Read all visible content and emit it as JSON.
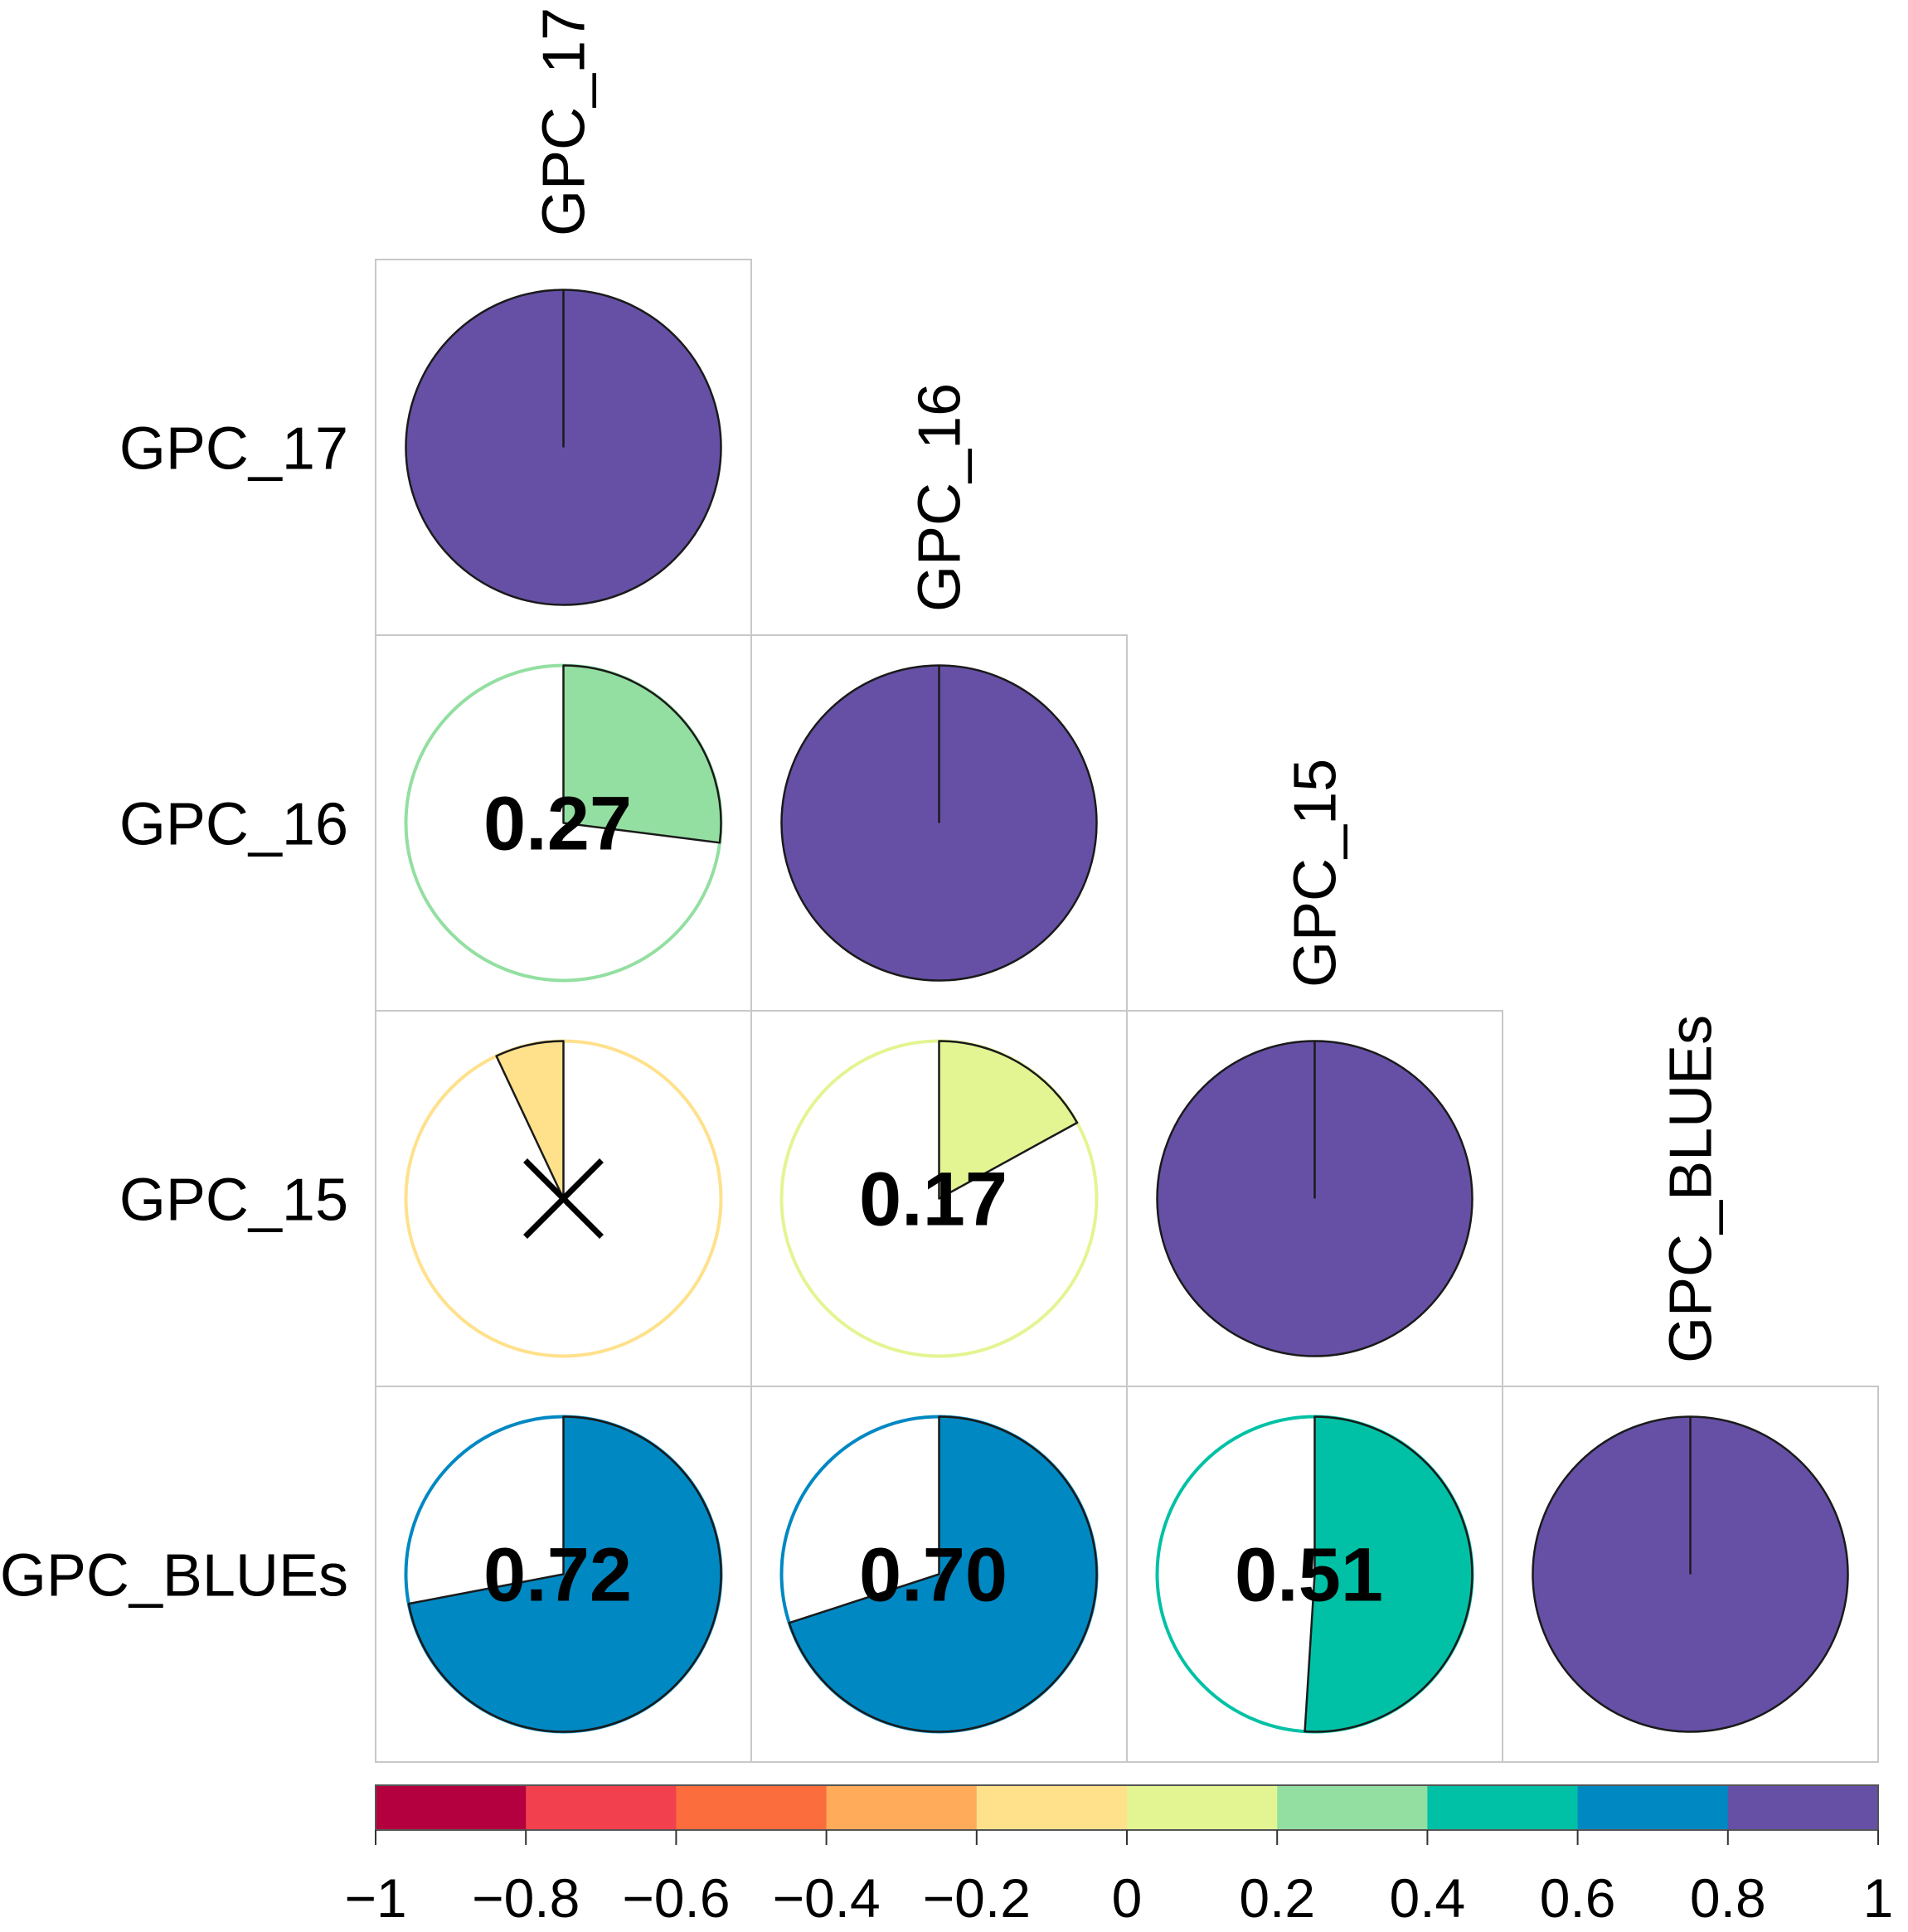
{
  "chart_data": {
    "type": "correlation_matrix_pie",
    "layout": "lower-triangle",
    "variables": [
      "GPC_17",
      "GPC_16",
      "GPC_15",
      "GPC_BLUEs"
    ],
    "matrix": [
      [
        1.0,
        null,
        null,
        null
      ],
      [
        0.27,
        1.0,
        null,
        null
      ],
      [
        -0.07,
        0.17,
        1.0,
        null
      ],
      [
        0.72,
        0.7,
        0.51,
        1.0
      ]
    ],
    "cells": [
      {
        "row": 0,
        "col": 0,
        "value": 1.0,
        "color": "#6650a6",
        "label": null,
        "insignificant": false
      },
      {
        "row": 1,
        "col": 0,
        "value": 0.27,
        "color": "#93dfa1",
        "label": "0.27",
        "insignificant": false
      },
      {
        "row": 1,
        "col": 1,
        "value": 1.0,
        "color": "#6650a6",
        "label": null,
        "insignificant": false
      },
      {
        "row": 2,
        "col": 0,
        "value": -0.07,
        "color": "#ffe18c",
        "label": null,
        "insignificant": true
      },
      {
        "row": 2,
        "col": 1,
        "value": 0.17,
        "color": "#e3f592",
        "label": "0.17",
        "insignificant": false
      },
      {
        "row": 2,
        "col": 2,
        "value": 1.0,
        "color": "#6650a6",
        "label": null,
        "insignificant": false
      },
      {
        "row": 3,
        "col": 0,
        "value": 0.72,
        "color": "#0088c2",
        "label": "0.72",
        "insignificant": false
      },
      {
        "row": 3,
        "col": 1,
        "value": 0.7,
        "color": "#0088c2",
        "label": "0.70",
        "insignificant": false
      },
      {
        "row": 3,
        "col": 2,
        "value": 0.51,
        "color": "#00c1a5",
        "label": "0.51",
        "insignificant": false
      },
      {
        "row": 3,
        "col": 3,
        "value": 1.0,
        "color": "#6650a6",
        "label": null,
        "insignificant": false
      }
    ],
    "colorbar": {
      "range": [
        -1,
        1
      ],
      "ticks": [
        "−1",
        "−0.8",
        "−0.6",
        "−0.4",
        "−0.2",
        "0",
        "0.2",
        "0.4",
        "0.6",
        "0.8",
        "1"
      ],
      "tick_values": [
        -1,
        -0.8,
        -0.6,
        -0.4,
        -0.2,
        0,
        0.2,
        0.4,
        0.6,
        0.8,
        1
      ],
      "colors": [
        "#b4003e",
        "#f3404f",
        "#fc6d3e",
        "#ffab5a",
        "#ffe18c",
        "#e3f592",
        "#93dfa1",
        "#00c1a5",
        "#0088c2",
        "#6650a6"
      ],
      "position": "bottom"
    },
    "insignificant_marker": "cross"
  }
}
